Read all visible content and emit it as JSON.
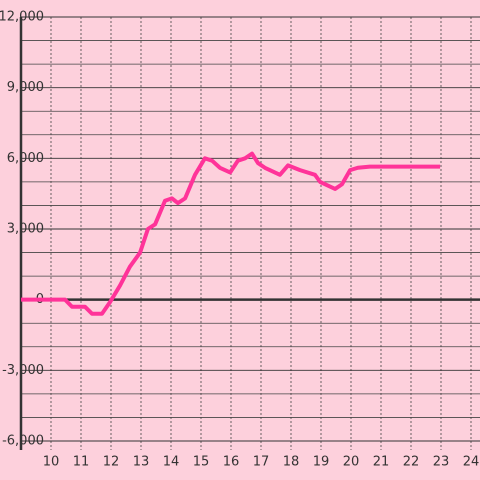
{
  "chart_data": {
    "type": "line",
    "x": [
      9.0,
      10.47,
      10.7,
      11.13,
      11.37,
      11.7,
      11.97,
      12.3,
      12.63,
      12.97,
      13.23,
      13.47,
      13.8,
      14.03,
      14.23,
      14.47,
      14.8,
      15.13,
      15.37,
      15.63,
      15.97,
      16.23,
      16.47,
      16.7,
      16.9,
      17.13,
      17.63,
      17.9,
      18.3,
      18.8,
      18.97,
      19.47,
      19.7,
      19.97,
      20.23,
      20.63,
      22.97
    ],
    "series": [
      {
        "name": null,
        "color": "#ff3399",
        "values": [
          0,
          0,
          -300,
          -300,
          -600,
          -600,
          -100,
          600,
          1400,
          2000,
          3000,
          3200,
          4200,
          4300,
          4100,
          4300,
          5300,
          6000,
          5900,
          5600,
          5400,
          5900,
          6000,
          6200,
          5800,
          5600,
          5300,
          5700,
          5500,
          5300,
          5000,
          4700,
          4900,
          5500,
          5600,
          5650,
          5650
        ]
      }
    ],
    "xlim": [
      9,
      24.3
    ],
    "ylim": [
      -6000,
      12000
    ],
    "xticks": [
      10,
      11,
      12,
      13,
      14,
      15,
      16,
      17,
      18,
      19,
      20,
      21,
      22,
      23,
      24
    ],
    "yticks": [
      {
        "value": 12000,
        "label": "12,000"
      },
      {
        "value": 9000,
        "label": "9,000"
      },
      {
        "value": 6000,
        "label": "6,000"
      },
      {
        "value": 3000,
        "label": "3,000"
      },
      0,
      {
        "value": -3000,
        "label": "-3,000"
      },
      {
        "value": -6000,
        "label": "-6,000"
      }
    ],
    "yminorticks": [
      -5000,
      -4000,
      -2000,
      -1000,
      1000,
      2000,
      4000,
      5000,
      7000,
      8000,
      10000,
      11000
    ],
    "grid": true
  }
}
